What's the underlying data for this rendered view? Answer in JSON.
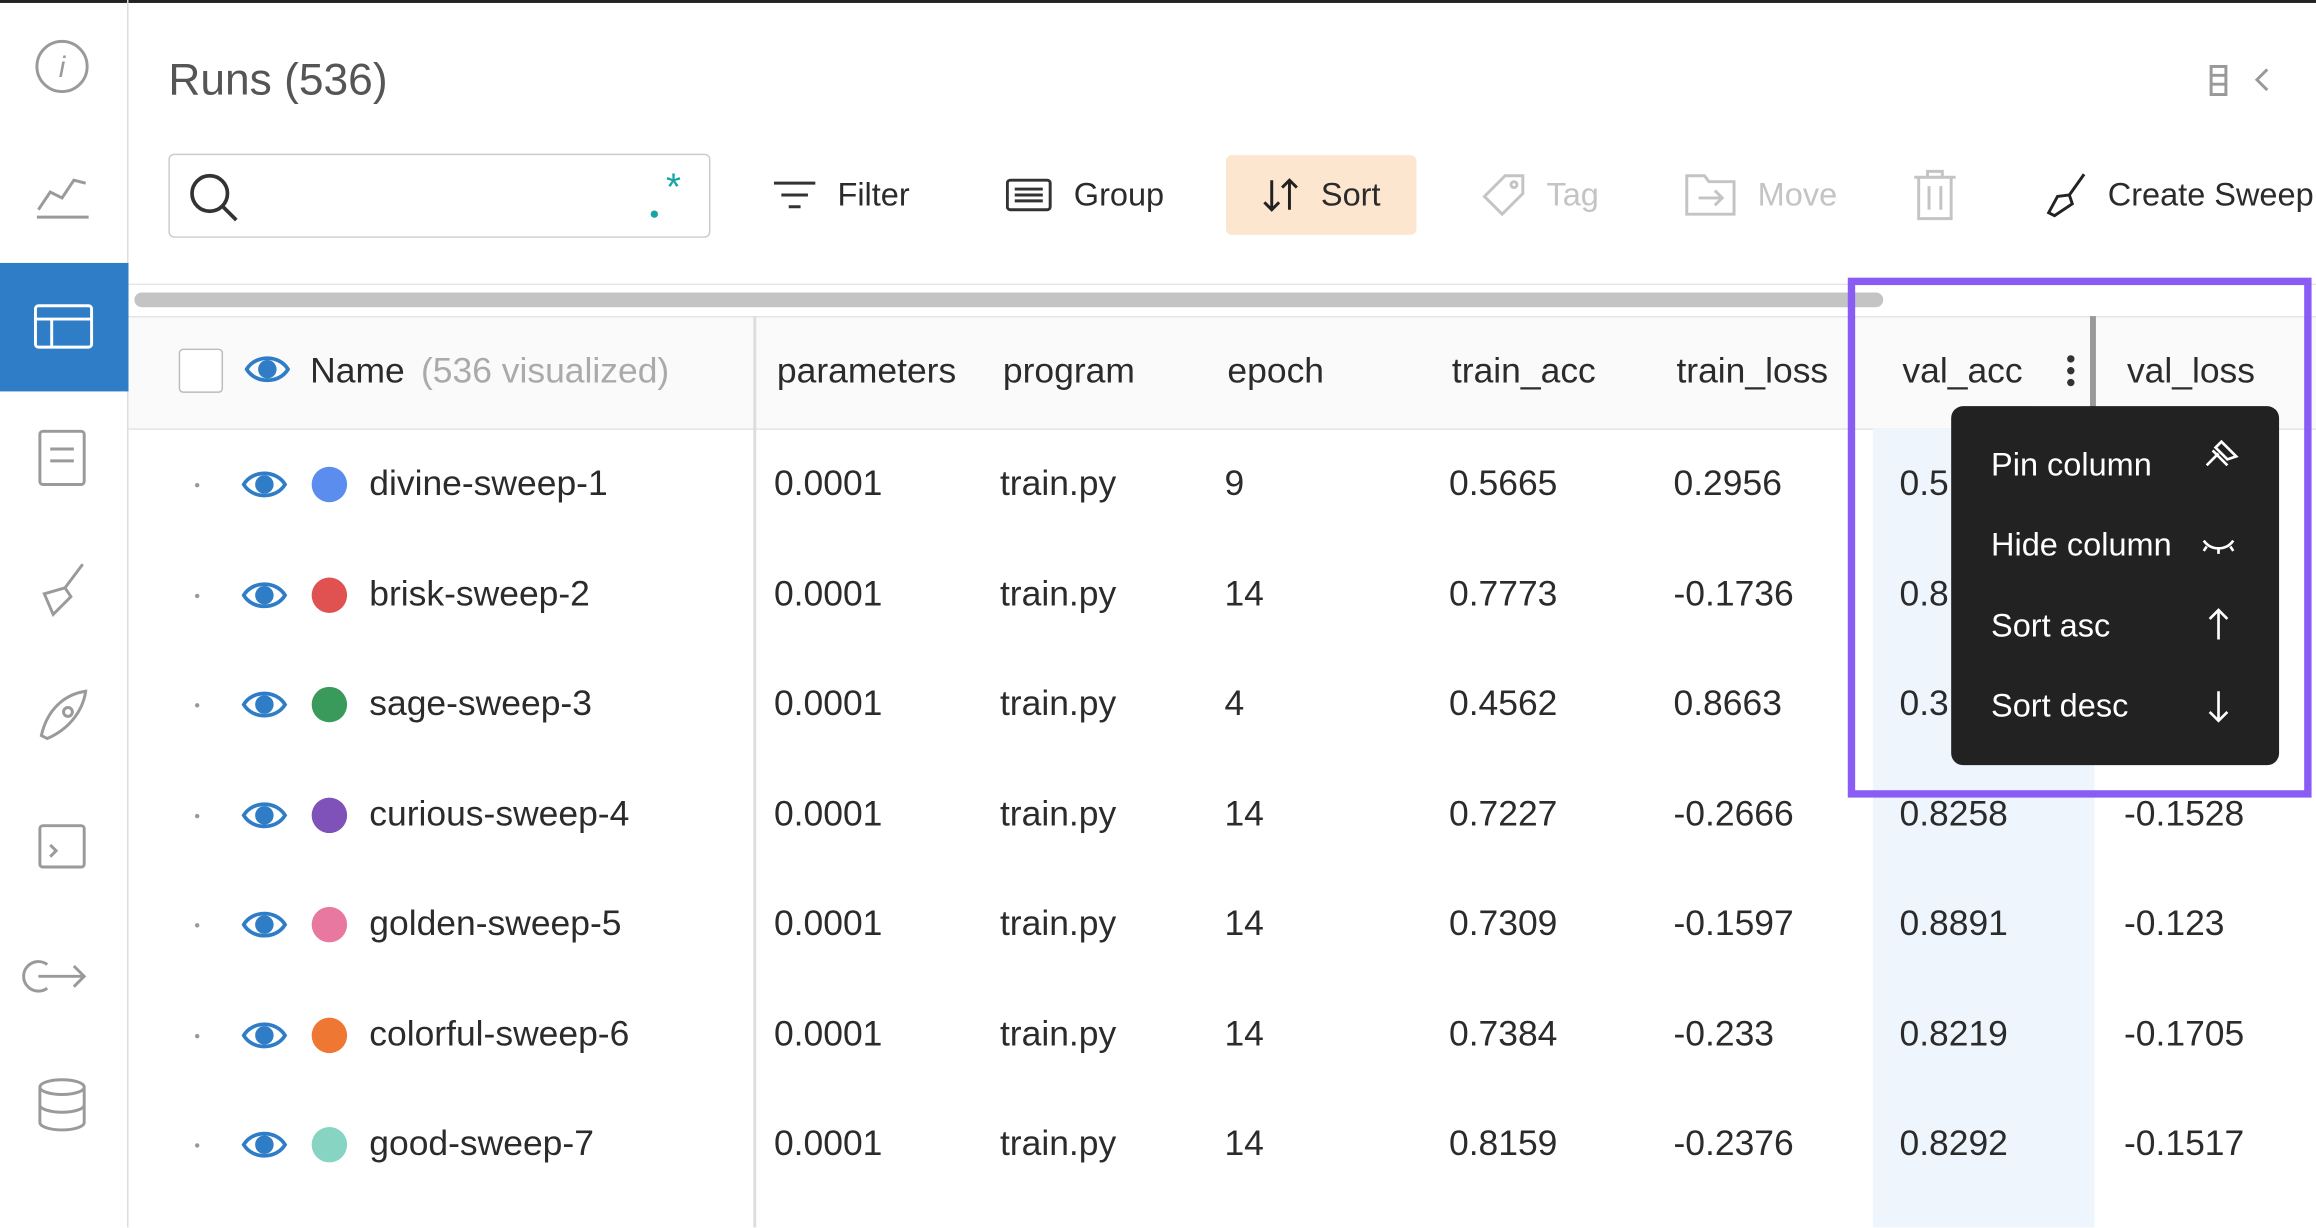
{
  "header": {
    "title": "Runs (536)"
  },
  "toolbar": {
    "filter": "Filter",
    "group": "Group",
    "sort": "Sort",
    "tag": "Tag",
    "move": "Move",
    "create_sweep": "Create Sweep"
  },
  "table": {
    "name_header": "Name",
    "visualized": "(536 visualized)",
    "columns": [
      "parameters",
      "program",
      "epoch",
      "train_acc",
      "train_loss",
      "val_acc",
      "val_loss"
    ],
    "rows": [
      {
        "name": "divine-sweep-1",
        "color": "#5b8def",
        "cells": [
          "0.0001",
          "train.py",
          "9",
          "0.5665",
          "0.2956",
          "0.5",
          null
        ]
      },
      {
        "name": "brisk-sweep-2",
        "color": "#e05252",
        "cells": [
          "0.0001",
          "train.py",
          "14",
          "0.7773",
          "-0.1736",
          "0.8",
          null
        ]
      },
      {
        "name": "sage-sweep-3",
        "color": "#3a9a5c",
        "cells": [
          "0.0001",
          "train.py",
          "4",
          "0.4562",
          "0.8663",
          "0.3",
          null
        ]
      },
      {
        "name": "curious-sweep-4",
        "color": "#7e52b8",
        "cells": [
          "0.0001",
          "train.py",
          "14",
          "0.7227",
          "-0.2666",
          "0.8258",
          "-0.1528"
        ]
      },
      {
        "name": "golden-sweep-5",
        "color": "#e878a0",
        "cells": [
          "0.0001",
          "train.py",
          "14",
          "0.7309",
          "-0.1597",
          "0.8891",
          "-0.123"
        ]
      },
      {
        "name": "colorful-sweep-6",
        "color": "#ee7733",
        "cells": [
          "0.0001",
          "train.py",
          "14",
          "0.7384",
          "-0.233",
          "0.8219",
          "-0.1705"
        ]
      },
      {
        "name": "good-sweep-7",
        "color": "#87d4c2",
        "cells": [
          "0.0001",
          "train.py",
          "14",
          "0.8159",
          "-0.2376",
          "0.8292",
          "-0.1517"
        ]
      }
    ]
  },
  "menu": {
    "items": [
      "Pin column",
      "Hide column",
      "Sort asc",
      "Sort desc"
    ]
  }
}
